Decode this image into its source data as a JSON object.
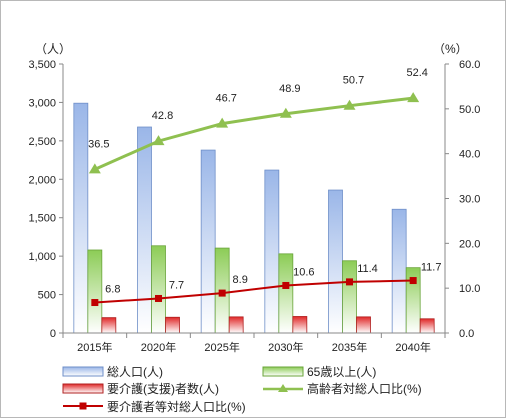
{
  "chart_data": {
    "type": "bar",
    "categories": [
      "2015年",
      "2020年",
      "2025年",
      "2030年",
      "2035年",
      "2040年"
    ],
    "y_left": {
      "unit_label": "（人）",
      "range": [
        0,
        3500
      ],
      "ticks": [
        "0",
        "500",
        "1,000",
        "1,500",
        "2,000",
        "2,500",
        "3,000",
        "3,500"
      ]
    },
    "y_right": {
      "unit_label": "（%）",
      "range": [
        0,
        60
      ],
      "ticks": [
        "0.0",
        "10.0",
        "20.0",
        "30.0",
        "40.0",
        "50.0",
        "60.0"
      ]
    },
    "series": [
      {
        "name": "総人口(人)",
        "type": "bar",
        "axis": "left",
        "color": "#9db8e6",
        "values": [
          2990,
          2680,
          2380,
          2120,
          1860,
          1610
        ]
      },
      {
        "name": "65歳以上(人)",
        "type": "bar",
        "axis": "left",
        "color": "#8fcf5a",
        "values": [
          1080,
          1135,
          1105,
          1030,
          940,
          850
        ]
      },
      {
        "name": "要介護(支援)者数(人)",
        "type": "bar",
        "axis": "left",
        "color": "#e04040",
        "values": [
          200,
          205,
          210,
          215,
          210,
          185
        ]
      },
      {
        "name": "高齢者対総人口比(%)",
        "type": "line",
        "axis": "right",
        "color": "#8fc050",
        "marker": "triangle",
        "values": [
          36.5,
          42.8,
          46.7,
          48.9,
          50.7,
          52.4
        ],
        "labels": [
          "36.5",
          "42.8",
          "46.7",
          "48.9",
          "50.7",
          "52.4"
        ]
      },
      {
        "name": "要介護者等対総人口比(%)",
        "type": "line",
        "axis": "right",
        "color": "#c00000",
        "marker": "square",
        "values": [
          6.8,
          7.7,
          8.9,
          10.6,
          11.4,
          11.7
        ],
        "labels": [
          "6.8",
          "7.7",
          "8.9",
          "10.6",
          "11.4",
          "11.7"
        ]
      }
    ],
    "legend": {
      "position": "bottom",
      "entries": [
        "総人口(人)",
        "65歳以上(人)",
        "要介護(支援)者数(人)",
        "高齢者対総人口比(%)",
        "要介護者等対総人口比(%)"
      ]
    },
    "grid": false
  }
}
